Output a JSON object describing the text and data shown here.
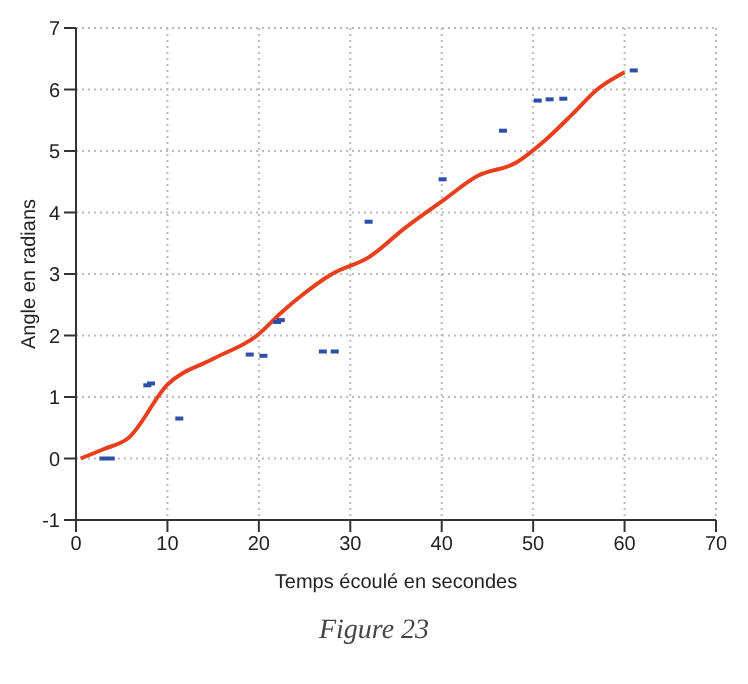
{
  "chart_data": {
    "type": "line",
    "xlabel": "Temps écoulé en secondes",
    "ylabel": "Angle en radians",
    "xlim": [
      0,
      70
    ],
    "xticks": [
      0,
      10,
      20,
      30,
      40,
      50,
      60,
      70
    ],
    "ylim": [
      -1,
      7
    ],
    "yticks": [
      -1,
      0,
      1,
      2,
      3,
      4,
      5,
      6,
      7
    ],
    "grid": true,
    "line_style": "solid",
    "annotations": [
      "Figure 23"
    ],
    "series": [
      {
        "type": "scatter",
        "color": "#2e4fa8",
        "marker": "square",
        "x": [
          3,
          3.8,
          7.8,
          8.2,
          11.3,
          19,
          20.5,
          22,
          22.4,
          27,
          28.3,
          32,
          40.1,
          46.7,
          50.5,
          51.8,
          53.3,
          61
        ],
        "values": [
          0,
          0,
          1.19,
          1.22,
          0.65,
          1.69,
          1.67,
          2.22,
          2.25,
          1.74,
          1.74,
          3.85,
          4.54,
          5.33,
          5.82,
          5.84,
          5.85,
          6.31
        ]
      },
      {
        "color": "#e8401c",
        "marker": "none",
        "x": [
          0.5,
          3,
          5.7,
          10,
          15,
          19.8,
          22.5,
          24.5,
          28,
          32,
          36,
          40,
          44,
          48,
          51.5,
          54.3,
          57,
          60
        ],
        "values": [
          0,
          0.15,
          0.33,
          1.2,
          1.62,
          2.0,
          2.38,
          2.63,
          3.0,
          3.27,
          3.75,
          4.18,
          4.6,
          4.8,
          5.2,
          5.6,
          6.0,
          6.28
        ]
      }
    ]
  }
}
